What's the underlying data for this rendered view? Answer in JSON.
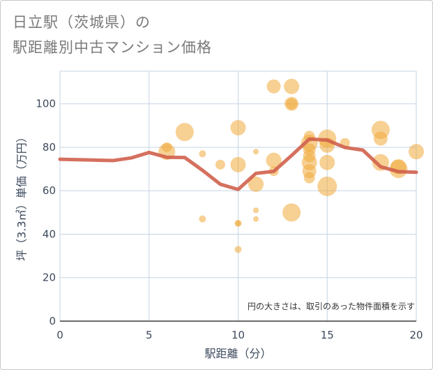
{
  "header": {
    "title_line1": "日立駅（茨城県）の",
    "title_line2": "駅距離別中古マンション価格"
  },
  "chart_data": {
    "type": "scatter",
    "xlabel": "駅距離（分）",
    "ylabel": "坪（3.3㎡）単価（万円）",
    "xlim": [
      0,
      20
    ],
    "ylim": [
      0,
      115
    ],
    "xticks": [
      0,
      5,
      10,
      15,
      20
    ],
    "yticks": [
      0,
      20,
      40,
      60,
      80,
      100
    ],
    "grid": true,
    "note": "円の大きさは、取引のあった物件面積を示す",
    "colors": {
      "bubble": "#f0a93b",
      "line": "#d0604d",
      "grid": "#c5d4e6",
      "axis_text": "#3d4a5c"
    },
    "bubbles": [
      {
        "x": 6,
        "y": 80,
        "s": 0.7
      },
      {
        "x": 6,
        "y": 78,
        "s": 1.2
      },
      {
        "x": 7,
        "y": 87,
        "s": 1.3
      },
      {
        "x": 8,
        "y": 77,
        "s": 0.5
      },
      {
        "x": 8,
        "y": 47,
        "s": 0.5
      },
      {
        "x": 9,
        "y": 72,
        "s": 0.7
      },
      {
        "x": 10,
        "y": 89,
        "s": 1.1
      },
      {
        "x": 10,
        "y": 72,
        "s": 1.1
      },
      {
        "x": 10,
        "y": 45,
        "s": 0.5
      },
      {
        "x": 10,
        "y": 45,
        "s": 0.4
      },
      {
        "x": 10,
        "y": 33,
        "s": 0.5
      },
      {
        "x": 11,
        "y": 78,
        "s": 0.4
      },
      {
        "x": 11,
        "y": 63,
        "s": 1.1
      },
      {
        "x": 11,
        "y": 51,
        "s": 0.4
      },
      {
        "x": 11,
        "y": 47,
        "s": 0.4
      },
      {
        "x": 12,
        "y": 108,
        "s": 1.0
      },
      {
        "x": 12,
        "y": 74,
        "s": 1.1
      },
      {
        "x": 12,
        "y": 69,
        "s": 0.7
      },
      {
        "x": 13,
        "y": 108,
        "s": 1.1
      },
      {
        "x": 13,
        "y": 100,
        "s": 1.0
      },
      {
        "x": 13,
        "y": 100,
        "s": 0.8
      },
      {
        "x": 13,
        "y": 50,
        "s": 1.3
      },
      {
        "x": 14,
        "y": 85,
        "s": 0.8
      },
      {
        "x": 14,
        "y": 82,
        "s": 1.2
      },
      {
        "x": 14,
        "y": 79,
        "s": 0.9
      },
      {
        "x": 14,
        "y": 76,
        "s": 0.9
      },
      {
        "x": 14,
        "y": 73,
        "s": 1.1
      },
      {
        "x": 14,
        "y": 69,
        "s": 1.0
      },
      {
        "x": 14,
        "y": 66,
        "s": 0.8
      },
      {
        "x": 15,
        "y": 84,
        "s": 1.3
      },
      {
        "x": 15,
        "y": 81,
        "s": 1.1
      },
      {
        "x": 15,
        "y": 73,
        "s": 1.1
      },
      {
        "x": 15,
        "y": 62,
        "s": 1.4
      },
      {
        "x": 16,
        "y": 82,
        "s": 0.7
      },
      {
        "x": 18,
        "y": 88,
        "s": 1.3
      },
      {
        "x": 18,
        "y": 84,
        "s": 1.0
      },
      {
        "x": 18,
        "y": 73,
        "s": 1.2
      },
      {
        "x": 19,
        "y": 71,
        "s": 1.1
      },
      {
        "x": 19,
        "y": 70,
        "s": 1.3
      },
      {
        "x": 20,
        "y": 78,
        "s": 1.1
      }
    ],
    "series": [
      {
        "type": "line",
        "x": [
          0,
          1,
          2,
          3,
          4,
          5,
          6,
          7,
          8,
          9,
          10,
          11,
          12,
          13,
          14,
          15,
          16,
          17,
          18,
          19,
          20
        ],
        "values": [
          74.5,
          74.3,
          74.1,
          73.9,
          75.1,
          77.6,
          75.4,
          75.3,
          69.4,
          63.0,
          60.6,
          68.0,
          68.9,
          76.2,
          83.8,
          83.3,
          79.9,
          78.7,
          71.0,
          68.8,
          68.5
        ]
      }
    ]
  }
}
